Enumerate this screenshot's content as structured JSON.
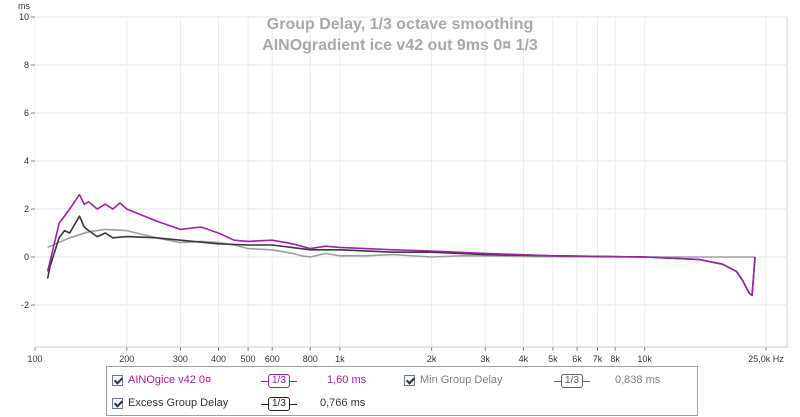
{
  "chart_data": {
    "type": "line",
    "title": "Group Delay, 1/3 octave smoothing",
    "subtitle": "AINOgradient ice v42 out 9ms 0¤ 1/3",
    "ylabel": "ms",
    "xlabel": "Hz",
    "xscale": "log",
    "xlim": [
      100,
      25000
    ],
    "ylim": [
      -4,
      10
    ],
    "yticks": [
      -2,
      0,
      2,
      4,
      6,
      8,
      10
    ],
    "xticks": [
      {
        "v": 100,
        "label": "100"
      },
      {
        "v": 200,
        "label": "200"
      },
      {
        "v": 300,
        "label": "300"
      },
      {
        "v": 400,
        "label": "400"
      },
      {
        "v": 500,
        "label": "500"
      },
      {
        "v": 600,
        "label": "600"
      },
      {
        "v": 800,
        "label": "800"
      },
      {
        "v": 1000,
        "label": "1k"
      },
      {
        "v": 2000,
        "label": "2k"
      },
      {
        "v": 3000,
        "label": "3k"
      },
      {
        "v": 4000,
        "label": "4k"
      },
      {
        "v": 5000,
        "label": "5k"
      },
      {
        "v": 6000,
        "label": "6k"
      },
      {
        "v": 7000,
        "label": "7k"
      },
      {
        "v": 8000,
        "label": "8k"
      },
      {
        "v": 10000,
        "label": "10k"
      },
      {
        "v": 25000,
        "label": "25,0k Hz"
      }
    ],
    "grid": true,
    "series": [
      {
        "name": "Min Group Delay",
        "color": "#a0a0a0",
        "x": [
          110,
          130,
          150,
          170,
          200,
          250,
          300,
          350,
          400,
          450,
          500,
          600,
          700,
          750,
          800,
          900,
          1000,
          1200,
          1500,
          2000,
          2500,
          3000,
          4000,
          6000,
          10000,
          15000,
          20000,
          23000
        ],
        "y": [
          0.4,
          0.8,
          1.05,
          1.15,
          1.1,
          0.8,
          0.6,
          0.65,
          0.6,
          0.5,
          0.35,
          0.3,
          0.15,
          0.05,
          0.0,
          0.15,
          0.05,
          0.05,
          0.1,
          0.0,
          0.05,
          0.05,
          0.02,
          0.01,
          0.0,
          0.0,
          0.0,
          0.0
        ]
      },
      {
        "name": "Excess Group Delay",
        "color": "#383838",
        "x": [
          110,
          112,
          120,
          125,
          130,
          140,
          145,
          150,
          160,
          170,
          180,
          200,
          250,
          300,
          400,
          500,
          600,
          800,
          1000,
          1500,
          2000,
          3000,
          5000,
          10000,
          15000,
          18000,
          20000,
          21000,
          22000,
          22500,
          23000
        ],
        "y": [
          -0.9,
          -0.4,
          0.8,
          1.1,
          1.0,
          1.7,
          1.25,
          1.1,
          0.85,
          1.0,
          0.8,
          0.85,
          0.8,
          0.7,
          0.55,
          0.5,
          0.5,
          0.3,
          0.3,
          0.2,
          0.2,
          0.1,
          0.05,
          0.0,
          -0.1,
          -0.3,
          -0.6,
          -1.0,
          -1.5,
          -1.6,
          0.0
        ]
      },
      {
        "name": "AINOgice v42 0¤",
        "color": "#a020a8",
        "x": [
          110,
          112,
          120,
          130,
          140,
          145,
          150,
          160,
          170,
          180,
          190,
          200,
          250,
          300,
          350,
          400,
          450,
          500,
          600,
          700,
          800,
          900,
          1000,
          1500,
          2000,
          3000,
          5000,
          10000,
          15000,
          18000,
          20000,
          21000,
          22000,
          22500,
          23000
        ],
        "y": [
          -0.6,
          -0.2,
          1.4,
          2.0,
          2.6,
          2.2,
          2.3,
          2.0,
          2.2,
          2.0,
          2.25,
          2.0,
          1.5,
          1.15,
          1.25,
          1.0,
          0.7,
          0.65,
          0.7,
          0.55,
          0.35,
          0.45,
          0.4,
          0.3,
          0.25,
          0.15,
          0.05,
          0.0,
          -0.1,
          -0.3,
          -0.6,
          -1.0,
          -1.5,
          -1.6,
          0.0
        ]
      }
    ],
    "legend": [
      {
        "label": "AINOgice v42 0¤",
        "checked": true,
        "smoothing": "1/3",
        "value": "1,60 ms",
        "color": "#a020a8"
      },
      {
        "label": "Min Group Delay",
        "checked": true,
        "smoothing": "1/3",
        "value": "0,838 ms",
        "color": "#808080"
      },
      {
        "label": "Excess Group Delay",
        "checked": true,
        "smoothing": "1/3",
        "value": "0,766 ms",
        "color": "#333333"
      }
    ]
  }
}
